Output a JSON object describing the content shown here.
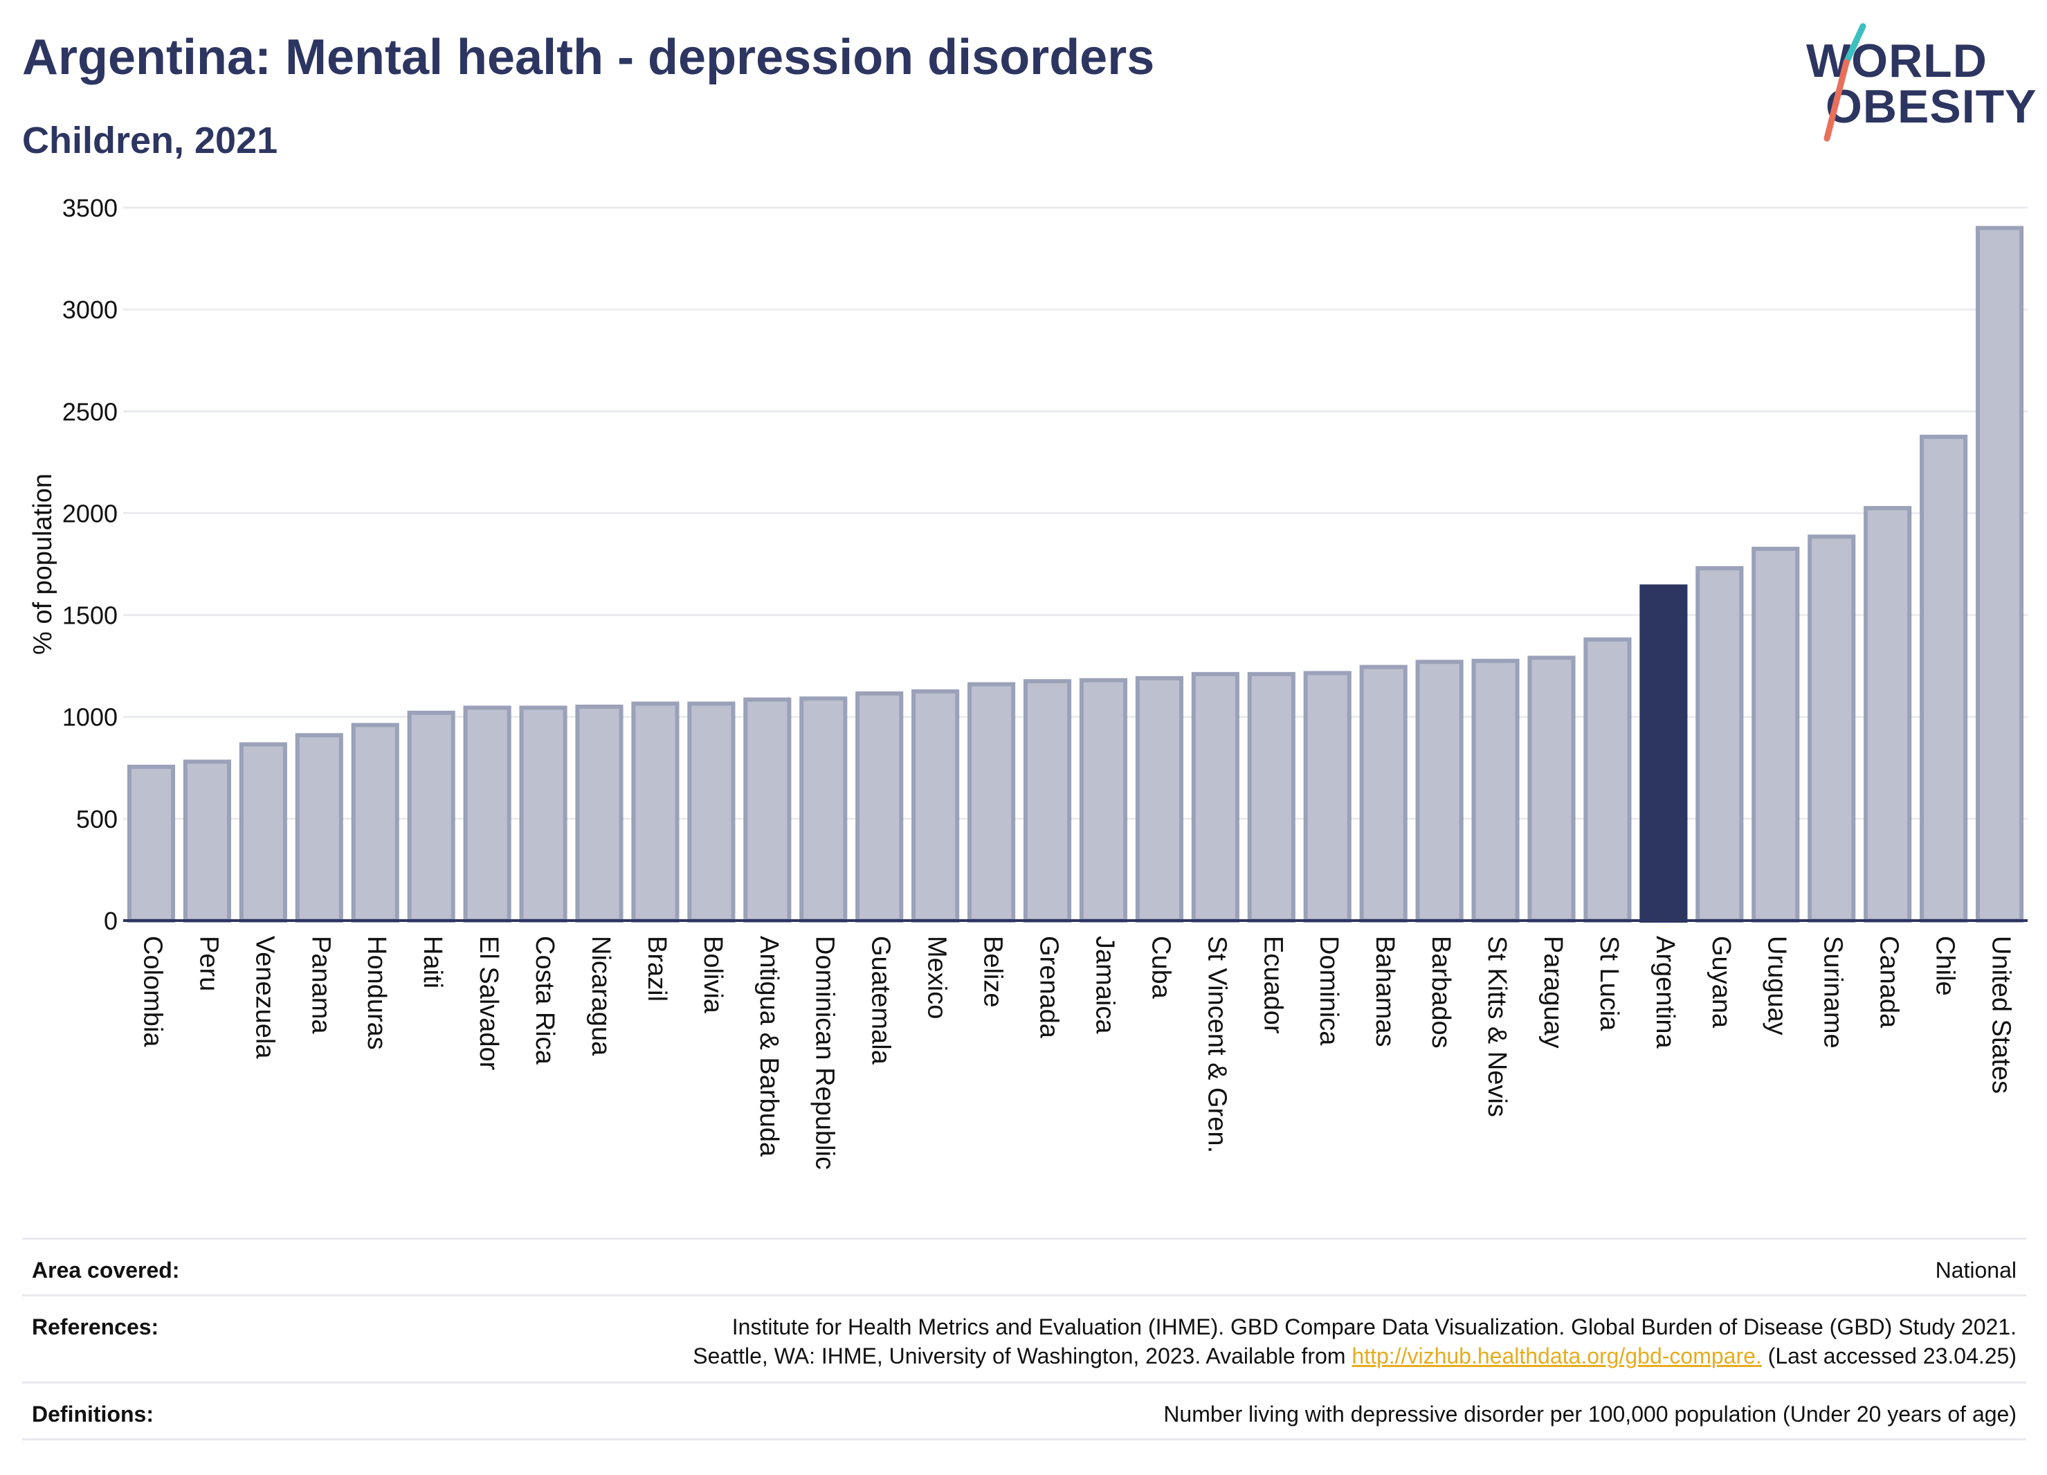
{
  "header": {
    "title": "Argentina: Mental health - depression disorders",
    "subtitle": "Children, 2021"
  },
  "logo": {
    "line1": "WORLD",
    "line2": "OBESITY"
  },
  "chart_data": {
    "type": "bar",
    "title": "Argentina: Mental health - depression disorders",
    "subtitle": "Children, 2021",
    "ylabel": "% of population",
    "xlabel": "",
    "ylim": [
      0,
      3500
    ],
    "yticks": [
      0,
      500,
      1000,
      1500,
      2000,
      2500,
      3000,
      3500
    ],
    "grid": true,
    "categories": [
      "Colombia",
      "Peru",
      "Venezuela",
      "Panama",
      "Honduras",
      "Haiti",
      "El Salvador",
      "Costa Rica",
      "Nicaragua",
      "Brazil",
      "Bolivia",
      "Antigua & Barbuda",
      "Dominican Republic",
      "Guatemala",
      "Mexico",
      "Belize",
      "Grenada",
      "Jamaica",
      "Cuba",
      "St Vincent & Gren.",
      "Ecuador",
      "Dominica",
      "Bahamas",
      "Barbados",
      "St Kitts & Nevis",
      "Paraguay",
      "St Lucia",
      "Argentina",
      "Guyana",
      "Uruguay",
      "Suriname",
      "Canada",
      "Chile",
      "United States"
    ],
    "values": [
      755,
      780,
      865,
      910,
      960,
      1020,
      1045,
      1045,
      1050,
      1065,
      1065,
      1085,
      1090,
      1115,
      1125,
      1160,
      1175,
      1180,
      1190,
      1210,
      1210,
      1215,
      1245,
      1270,
      1275,
      1290,
      1380,
      1640,
      1730,
      1825,
      1885,
      2025,
      2375,
      3400
    ],
    "highlight": "Argentina",
    "colors": {
      "bar": "#bdc1cf",
      "bar_border": "#9ba1b8",
      "highlight": "#2d3561",
      "grid": "#e9ebef",
      "axis": "#2d3561"
    }
  },
  "meta": {
    "area_label": "Area covered:",
    "area_value": "National",
    "references_label": "References:",
    "references_line1": "Institute for Health Metrics and Evaluation (IHME). GBD Compare Data Visualization. Global Burden of Disease (GBD) Study 2021.",
    "references_line2_pre": "Seattle, WA: IHME, University of Washington, 2023. Available from",
    "references_link": "http://vizhub.healthdata.org/gbd-compare.",
    "references_line2_post": "(Last accessed 23.04.25)",
    "definitions_label": "Definitions:",
    "definitions_value": "Number living with depressive disorder per 100,000 population (Under 20 years of age)"
  }
}
